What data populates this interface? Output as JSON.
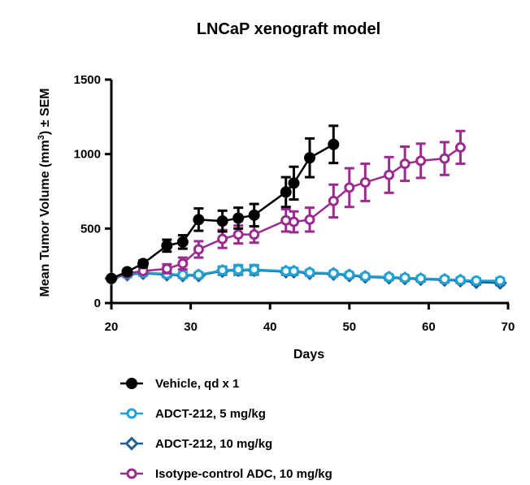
{
  "chart_data": {
    "type": "line",
    "title": "LNCaP xenograft model",
    "xlabel": "Days",
    "ylabel_prefix": "Mean Tumor Volume (mm",
    "ylabel_sup": "3",
    "ylabel_suffix": ") ± SEM",
    "xlim": [
      20,
      70
    ],
    "ylim": [
      0,
      1500
    ],
    "xticks": [
      20,
      30,
      40,
      50,
      60,
      70
    ],
    "yticks": [
      0,
      500,
      1000,
      1500
    ],
    "legend_position": "bottom",
    "series": [
      {
        "name": "Vehicle, qd x 1",
        "color": "#000000",
        "marker": "circle-filled",
        "x": [
          20,
          22,
          24,
          27,
          29,
          31,
          34,
          36,
          38,
          42,
          43,
          45,
          48
        ],
        "y": [
          165,
          210,
          265,
          385,
          410,
          560,
          550,
          570,
          590,
          745,
          805,
          975,
          1065
        ],
        "err": [
          10,
          15,
          20,
          40,
          45,
          75,
          70,
          70,
          75,
          100,
          110,
          130,
          125
        ]
      },
      {
        "name": "ADCT-212, 5 mg/kg",
        "color": "#1fa2d6",
        "marker": "circle-open",
        "x": [
          20,
          22,
          24,
          27,
          29,
          31,
          34,
          36,
          38,
          42,
          43,
          45,
          48,
          50,
          52,
          55,
          57,
          59,
          62,
          64,
          66,
          69
        ],
        "y": [
          165,
          195,
          205,
          195,
          190,
          190,
          220,
          225,
          225,
          215,
          215,
          205,
          200,
          190,
          180,
          175,
          170,
          165,
          160,
          155,
          150,
          150
        ],
        "err": [
          10,
          15,
          15,
          15,
          15,
          15,
          25,
          30,
          30,
          20,
          20,
          15,
          15,
          15,
          15,
          15,
          15,
          15,
          15,
          15,
          15,
          15
        ]
      },
      {
        "name": "ADCT-212, 10 mg/kg",
        "color": "#1d5f96",
        "marker": "diamond-open",
        "x": [
          20,
          22,
          24,
          27,
          29,
          31,
          34,
          36,
          38,
          42,
          43,
          45,
          48,
          50,
          52,
          55,
          57,
          59,
          62,
          64,
          66,
          69
        ],
        "y": [
          165,
          190,
          200,
          190,
          185,
          185,
          215,
          220,
          220,
          210,
          210,
          200,
          195,
          185,
          175,
          170,
          165,
          160,
          155,
          150,
          140,
          135
        ],
        "err": [
          10,
          15,
          15,
          15,
          15,
          15,
          25,
          30,
          30,
          20,
          20,
          15,
          15,
          15,
          15,
          15,
          15,
          15,
          15,
          15,
          15,
          15
        ]
      },
      {
        "name": "Isotype-control ADC, 10 mg/kg",
        "color": "#9c2b8f",
        "marker": "circle-open",
        "x": [
          20,
          22,
          24,
          27,
          29,
          31,
          34,
          36,
          38,
          42,
          43,
          45,
          48,
          50,
          52,
          55,
          57,
          59,
          62,
          64
        ],
        "y": [
          165,
          200,
          215,
          230,
          265,
          360,
          430,
          460,
          460,
          555,
          545,
          560,
          685,
          775,
          810,
          860,
          935,
          955,
          970,
          1045
        ],
        "err": [
          10,
          15,
          15,
          30,
          40,
          55,
          60,
          60,
          55,
          75,
          70,
          80,
          110,
          130,
          125,
          120,
          115,
          115,
          110,
          110
        ]
      }
    ]
  }
}
